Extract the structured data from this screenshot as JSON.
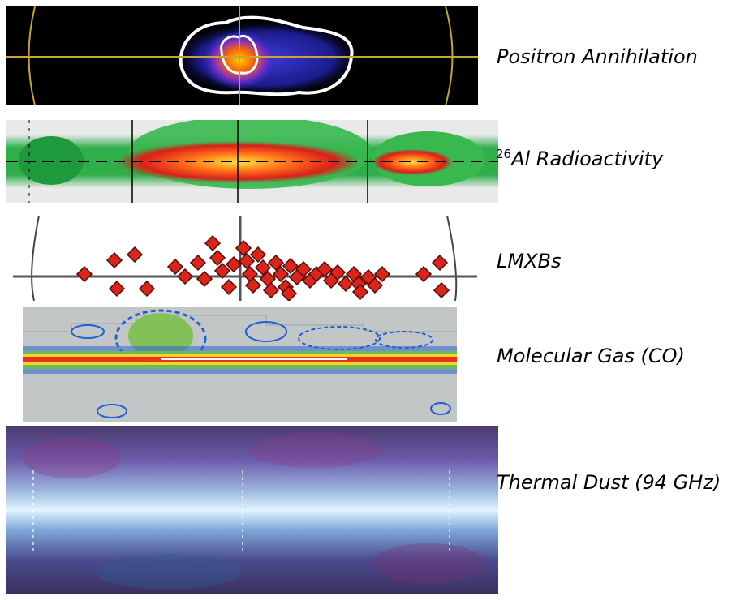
{
  "panels": [
    {
      "id": "positron",
      "label": "Positron Annihilation"
    },
    {
      "id": "al26",
      "label_sup": "26",
      "label": "Al Radioactivity"
    },
    {
      "id": "lmxb",
      "label": "LMXBs"
    },
    {
      "id": "co",
      "label": "Molecular Gas (CO)"
    },
    {
      "id": "dust",
      "label": "Thermal Dust (94 GHz)"
    }
  ],
  "colors": {
    "grid_gold": "#c9a23a",
    "lmxb_marker": "#d8261c",
    "contour_white": "#ffffff"
  }
}
